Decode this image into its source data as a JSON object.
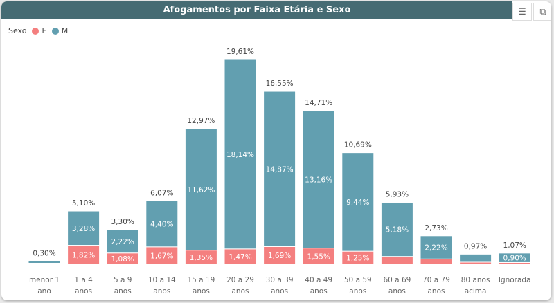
{
  "chart_data": {
    "type": "bar",
    "stacked": true,
    "title": "Afogamentos por Faixa Etária e Sexo",
    "legend": {
      "title": "Sexo",
      "position": "top-left"
    },
    "categories": [
      "menor 1 ano",
      "1 a 4 anos",
      "5 a 9 anos",
      "10 a 14 anos",
      "15 a 19 anos",
      "20 a 29 anos",
      "30 a 39 anos",
      "40 a 49 anos",
      "50 a 59 anos",
      "60 a 69 anos",
      "70 a 79 anos",
      "80 anos acima",
      "Ignorada"
    ],
    "series": [
      {
        "name": "F",
        "color": "#f47f7f",
        "values": [
          0.1,
          1.82,
          1.08,
          1.67,
          1.35,
          1.47,
          1.69,
          1.55,
          1.25,
          0.75,
          0.51,
          0.2,
          0.17
        ],
        "labels": [
          "",
          "1,82%",
          "1,08%",
          "1,67%",
          "1,35%",
          "1,47%",
          "1,69%",
          "1,55%",
          "1,25%",
          "",
          "",
          "",
          ""
        ]
      },
      {
        "name": "M",
        "color": "#629fb0",
        "values": [
          0.2,
          3.28,
          2.22,
          4.4,
          11.62,
          18.14,
          14.87,
          13.16,
          9.44,
          5.18,
          2.22,
          0.77,
          0.9
        ],
        "labels": [
          "",
          "3,28%",
          "2,22%",
          "4,40%",
          "11,62%",
          "18,14%",
          "14,87%",
          "13,16%",
          "9,44%",
          "5,18%",
          "2,22%",
          "",
          "0,90%"
        ]
      }
    ],
    "totals": [
      0.3,
      5.1,
      3.3,
      6.07,
      12.97,
      19.61,
      16.55,
      14.71,
      10.69,
      5.93,
      2.73,
      0.97,
      1.07
    ],
    "total_labels": [
      "0,30%",
      "5,10%",
      "3,30%",
      "6,07%",
      "12,97%",
      "19,61%",
      "16,55%",
      "14,71%",
      "10,69%",
      "5,93%",
      "2,73%",
      "0,97%",
      "1,07%"
    ],
    "grid": false
  },
  "toolbar": {
    "filter_icon": "filter-icon",
    "focus_icon": "focus-mode-icon"
  }
}
